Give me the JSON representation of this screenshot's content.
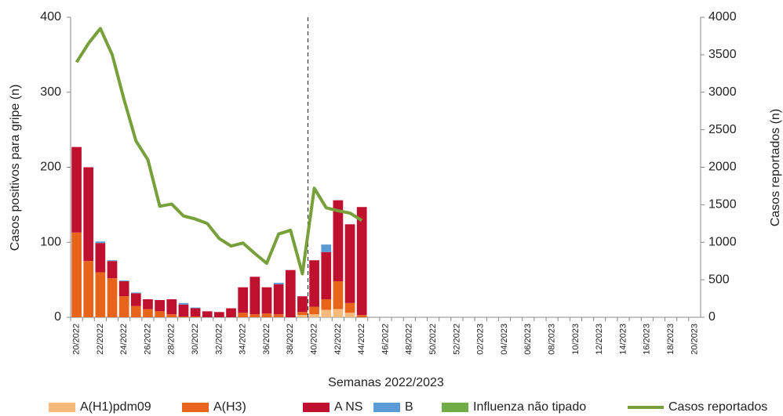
{
  "chart_data": {
    "type": "bar",
    "stacked": true,
    "xlabel": "Semanas 2022/2023",
    "ylabel": "Casos positivos para gripe (n)",
    "y2label": "Casos reportados (n)",
    "categories": [
      "20/2022",
      null,
      "22/2022",
      null,
      "24/2022",
      null,
      "26/2022",
      null,
      "28/2022",
      null,
      "30/2022",
      null,
      "32/2022",
      null,
      "34/2022",
      null,
      "36/2022",
      null,
      "38/2022",
      null,
      "40/2022",
      null,
      "42/2022",
      null,
      "44/2022",
      null,
      "46/2022",
      null,
      "48/2022",
      null,
      "50/2022",
      null,
      "52/2022",
      null,
      "02/2023",
      null,
      "04/2023",
      null,
      "06/2023",
      null,
      "08/2023",
      null,
      "10/2023",
      null,
      "12/2023",
      null,
      "14/2023",
      null,
      "16/2023",
      null,
      "18/2023",
      null,
      "20/2023"
    ],
    "series": [
      {
        "name": "A(H1)pdm09",
        "color": "#f9b97a",
        "values": [
          0,
          0,
          0,
          0,
          0,
          0,
          0,
          0,
          0,
          0,
          0,
          0,
          0,
          0,
          0,
          0,
          0,
          0,
          0,
          3,
          4,
          10,
          11,
          6,
          0,
          null,
          null,
          null,
          null,
          null,
          null,
          null,
          null,
          null,
          null,
          null,
          null,
          null,
          null,
          null,
          null,
          null,
          null,
          null,
          null,
          null,
          null,
          null,
          null,
          null,
          null,
          null,
          null
        ]
      },
      {
        "name": "A(H3)",
        "color": "#e8641b",
        "values": [
          113,
          75,
          60,
          52,
          28,
          15,
          11,
          8,
          4,
          1,
          1,
          0,
          0,
          0,
          6,
          4,
          5,
          4,
          0,
          4,
          10,
          14,
          37,
          13,
          3,
          null,
          null,
          null,
          null,
          null,
          null,
          null,
          null,
          null,
          null,
          null,
          null,
          null,
          null,
          null,
          null,
          null,
          null,
          null,
          null,
          null,
          null,
          null,
          null,
          null,
          null,
          null,
          null
        ]
      },
      {
        "name": "A NS",
        "color": "#c0102f",
        "values": [
          114,
          125,
          39,
          23,
          20,
          17,
          13,
          15,
          20,
          16,
          11,
          8,
          7,
          12,
          34,
          50,
          35,
          40,
          63,
          21,
          62,
          63,
          108,
          105,
          144,
          null,
          null,
          null,
          null,
          null,
          null,
          null,
          null,
          null,
          null,
          null,
          null,
          null,
          null,
          null,
          null,
          null,
          null,
          null,
          null,
          null,
          null,
          null,
          null,
          null,
          null,
          null,
          null
        ]
      },
      {
        "name": "B",
        "color": "#5b9bd5",
        "values": [
          0,
          0,
          2,
          1,
          1,
          1,
          0,
          0,
          0,
          2,
          1,
          0,
          0,
          0,
          0,
          0,
          0,
          2,
          0,
          0,
          0,
          10,
          0,
          0,
          0,
          null,
          null,
          null,
          null,
          null,
          null,
          null,
          null,
          null,
          null,
          null,
          null,
          null,
          null,
          null,
          null,
          null,
          null,
          null,
          null,
          null,
          null,
          null,
          null,
          null,
          null,
          null,
          null
        ]
      },
      {
        "name": "Influenza não tipado",
        "color": "#70ad47",
        "values": [
          0,
          0,
          0,
          0,
          0,
          0,
          0,
          0,
          0,
          0,
          0,
          0,
          0,
          0,
          0,
          0,
          0,
          0,
          0,
          0,
          0,
          0,
          0,
          0,
          0,
          null,
          null,
          null,
          null,
          null,
          null,
          null,
          null,
          null,
          null,
          null,
          null,
          null,
          null,
          null,
          null,
          null,
          null,
          null,
          null,
          null,
          null,
          null,
          null,
          null,
          null,
          null,
          null
        ]
      },
      {
        "name": "Casos reportados",
        "type": "line",
        "axis": "y2",
        "color": "#77a03a",
        "values": [
          3400,
          3650,
          3850,
          3500,
          2900,
          2350,
          2100,
          1480,
          1510,
          1350,
          1310,
          1250,
          1050,
          950,
          990,
          850,
          720,
          1110,
          1160,
          580,
          1720,
          1460,
          1420,
          1390,
          1290,
          null,
          null,
          null,
          null,
          null,
          null,
          null,
          null,
          null,
          null,
          null,
          null,
          null,
          null,
          null,
          null,
          null,
          null,
          null,
          null,
          null,
          null,
          null,
          null,
          null,
          null,
          null,
          null
        ]
      }
    ],
    "ylim": [
      0,
      400
    ],
    "yticks": [
      0,
      100,
      200,
      300,
      400
    ],
    "y2lim": [
      0,
      4000
    ],
    "y2ticks": [
      0,
      500,
      1000,
      1500,
      2000,
      2500,
      3000,
      3500,
      4000
    ],
    "grid": false,
    "legend": "bottom"
  }
}
